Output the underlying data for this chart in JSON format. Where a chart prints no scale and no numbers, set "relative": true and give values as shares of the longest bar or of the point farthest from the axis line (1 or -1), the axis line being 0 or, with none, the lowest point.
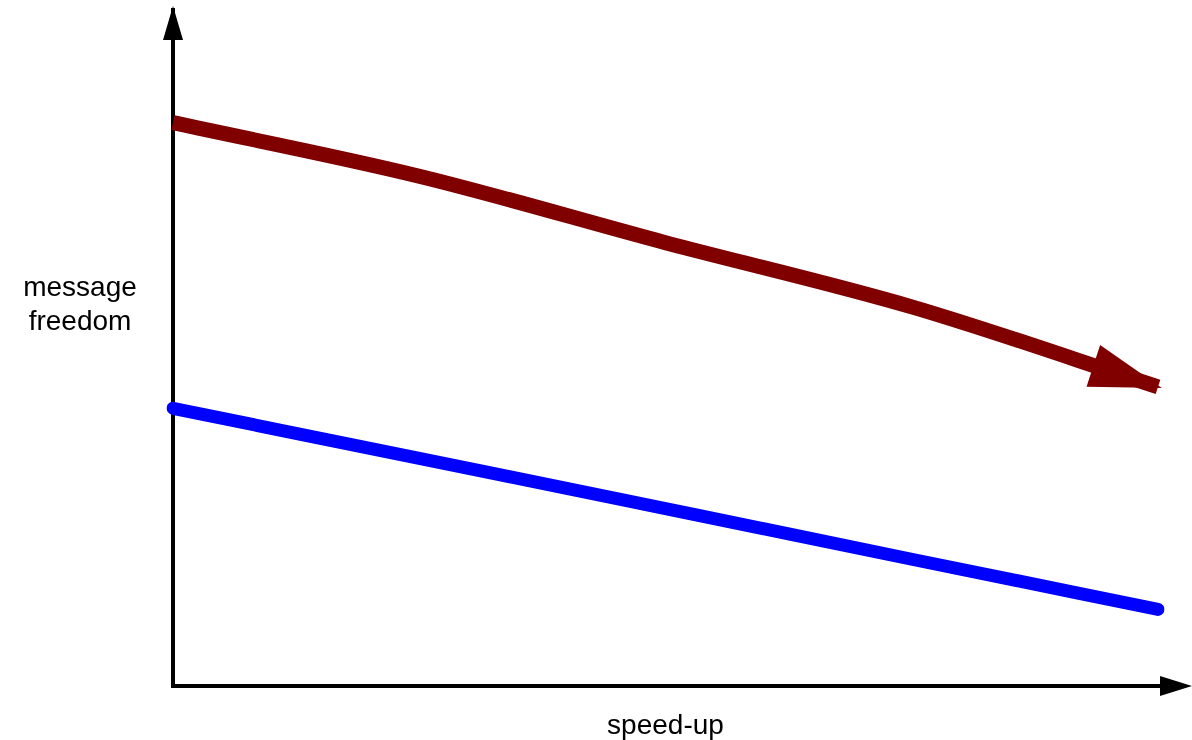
{
  "chart_data": {
    "type": "line",
    "relative": true,
    "xlabel": "speed-up",
    "ylabel": "message freedom",
    "marker": "none",
    "categories": [
      null,
      null,
      null,
      null,
      null
    ],
    "series": [
      {
        "color": "#800000",
        "values": [
          1,
          0.905,
          0.787,
          0.673,
          0.531
        ]
      },
      {
        "color": "#0000ff",
        "values": [
          0.493,
          0.404,
          0.315,
          0.225,
          0.136
        ]
      }
    ]
  }
}
